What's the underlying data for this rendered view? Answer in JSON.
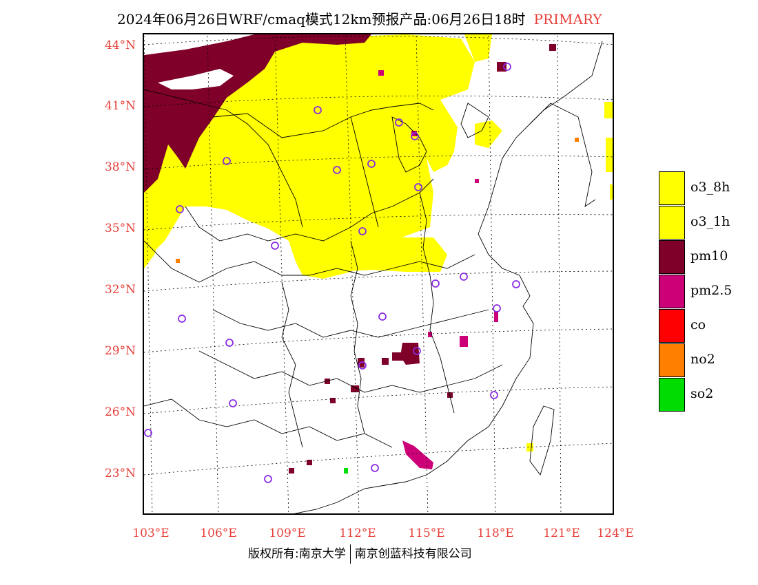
{
  "title": {
    "text": "2024年06月26日WRF/cmaq模式12km预报产品:06月26日18时",
    "tag": "PRIMARY"
  },
  "axes": {
    "lat_labels": [
      "44°N",
      "41°N",
      "38°N",
      "35°N",
      "32°N",
      "29°N",
      "26°N",
      "23°N"
    ],
    "lon_labels": [
      "103°E",
      "106°E",
      "109°E",
      "112°E",
      "115°E",
      "118°E",
      "121°E",
      "124°E"
    ]
  },
  "legend": {
    "items": [
      {
        "label": "o3_8h",
        "color": "#ffff00"
      },
      {
        "label": "o3_1h",
        "color": "#ffff00"
      },
      {
        "label": "pm10",
        "color": "#7f0028"
      },
      {
        "label": "pm2.5",
        "color": "#cc0077"
      },
      {
        "label": "co",
        "color": "#ff0000"
      },
      {
        "label": "no2",
        "color": "#ff7f00"
      },
      {
        "label": "so2",
        "color": "#00dd00"
      }
    ]
  },
  "footer": {
    "copyright": "版权所有:南京大学",
    "company": "南京创蓝科技有限公司"
  },
  "colors": {
    "o3": "#ffff00",
    "pm10": "#7f0028",
    "pm25": "#cc0077",
    "no2": "#ff7f00",
    "so2": "#00dd00",
    "station": "#8a2be2",
    "label_red": "#e8403a"
  }
}
